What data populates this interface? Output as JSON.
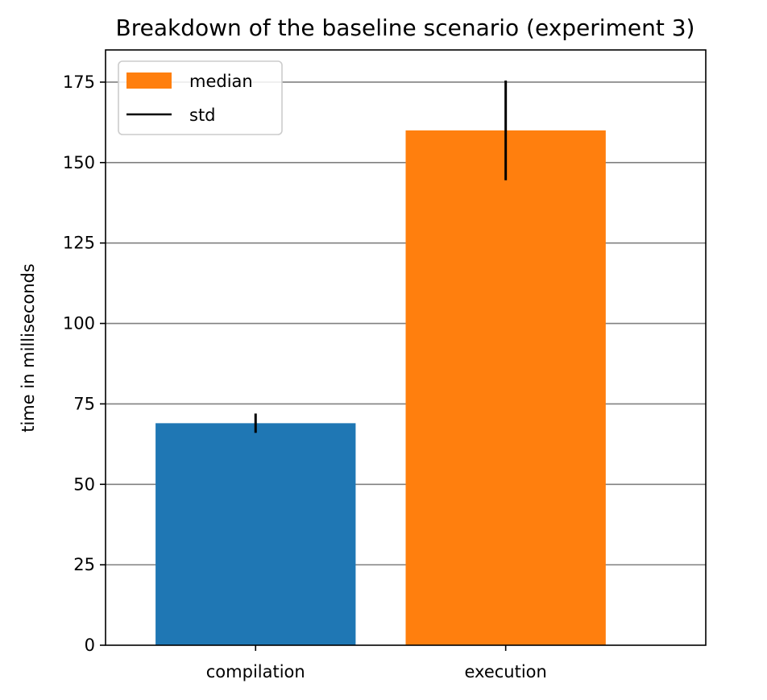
{
  "chart_data": {
    "type": "bar",
    "title": "Breakdown of the baseline scenario (experiment 3)",
    "xlabel": "",
    "ylabel": "time in milliseconds",
    "categories": [
      "compilation",
      "execution"
    ],
    "values": [
      69,
      160
    ],
    "std": [
      3,
      15.5
    ],
    "bar_colors": [
      "#1f77b4",
      "#ff7f0e"
    ],
    "errorbar_color": "#000000",
    "ylim": [
      0,
      185
    ],
    "yticks": [
      0,
      25,
      50,
      75,
      100,
      125,
      150,
      175
    ],
    "grid": "horizontal",
    "grid_color": "#808080",
    "legend": {
      "placement": "top-left",
      "entries": [
        {
          "label": "median",
          "marker": "patch",
          "color": "#ff7f0e"
        },
        {
          "label": "std",
          "marker": "line",
          "color": "#000000"
        }
      ]
    }
  }
}
